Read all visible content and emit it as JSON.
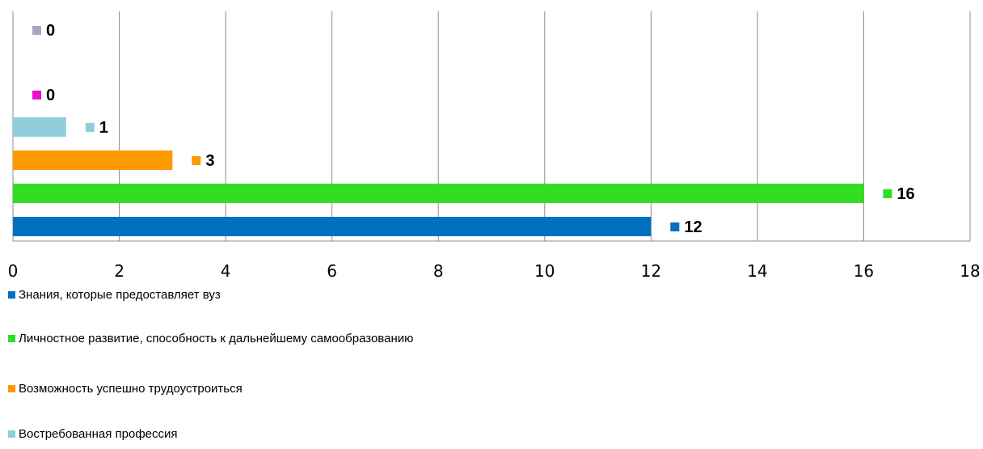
{
  "chart_data": {
    "type": "bar",
    "orientation": "horizontal",
    "xlim": [
      0,
      18
    ],
    "x_ticks": [
      "0",
      "2",
      "4",
      "6",
      "8",
      "10",
      "12",
      "14",
      "16",
      "18"
    ],
    "grid": true,
    "legend_position": "bottom-left",
    "series": [
      {
        "name": "Знания, которые предоставляет вуз",
        "value": 12,
        "label": "12",
        "color": "#0070C0"
      },
      {
        "name": "Личностное развитие, способность к дальнейшему самообразованию",
        "value": 16,
        "label": "16",
        "color": "#33DD22"
      },
      {
        "name": "Возможность успешно трудоустроиться",
        "value": 3,
        "label": "3",
        "color": "#FF9900"
      },
      {
        "name": "Востребованная профессия",
        "value": 1,
        "label": "1",
        "color": "#92CDDC"
      },
      {
        "name": "",
        "value": 0,
        "label": "0",
        "color": "#EE11CC"
      },
      {
        "name": "",
        "value": 0,
        "label": "0",
        "color": "#B3A2C7"
      }
    ]
  }
}
